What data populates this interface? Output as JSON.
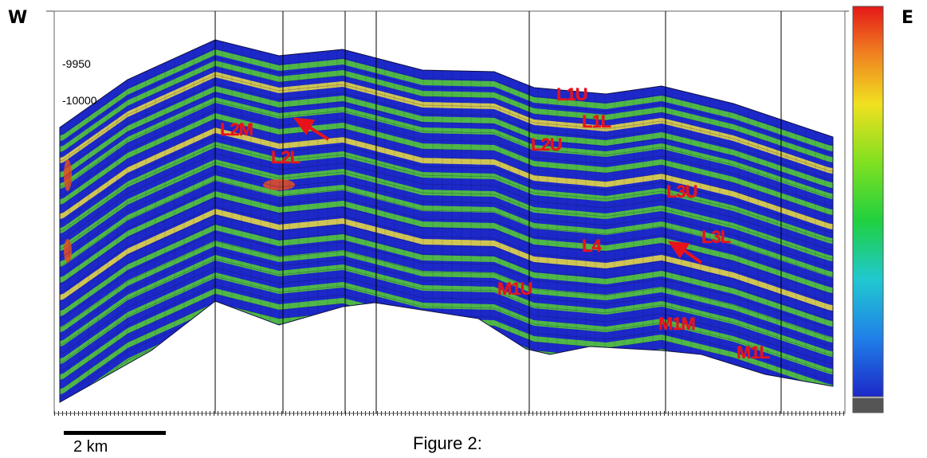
{
  "direction": {
    "west": "W",
    "east": "E"
  },
  "y_axis_ticks": [
    "-9950",
    "-10000"
  ],
  "zone_labels": {
    "L1U": "L1U",
    "L1L": "L1L",
    "L2M": "L2M",
    "L2L": "L2L",
    "L2U": "L2U",
    "L3U": "L3U",
    "L3L": "L3L",
    "L4": "L4",
    "M1U": "M1U",
    "M1M": "M1M",
    "M1L": "M1L"
  },
  "scale_bar": {
    "label": "2 km"
  },
  "caption": "Figure 2:",
  "colors": {
    "low": "#1c28c8",
    "mid": "#58d030",
    "high": "#f0e040",
    "peak": "#e85020"
  }
}
